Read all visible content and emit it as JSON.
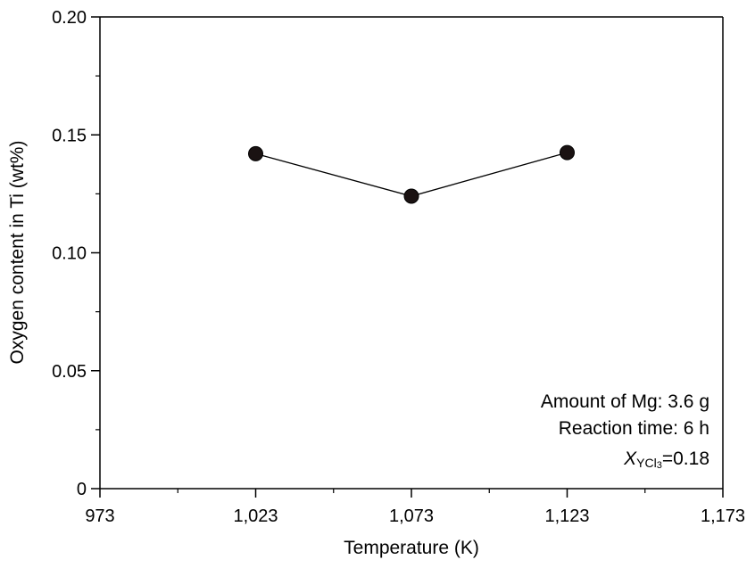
{
  "chart_data": {
    "type": "line",
    "xlabel": "Temperature (K)",
    "ylabel": "Oxygen content in Ti (wt%)",
    "xlim": [
      973,
      1173
    ],
    "ylim": [
      0,
      0.2
    ],
    "x_ticks": [
      973,
      1023,
      1073,
      1123,
      1173
    ],
    "x_tick_labels": [
      "973",
      "1,023",
      "1,073",
      "1,123",
      "1,173"
    ],
    "y_ticks": [
      0,
      0.05,
      0.1,
      0.15,
      0.2
    ],
    "y_tick_labels": [
      "0",
      "0.05",
      "0.10",
      "0.15",
      "0.20"
    ],
    "grid": false,
    "series": [
      {
        "name": "Oxygen content",
        "x": [
          1023,
          1073,
          1123
        ],
        "values": [
          0.142,
          0.124,
          0.1425
        ]
      }
    ],
    "annotations": {
      "line1": "Amount of Mg: 3.6 g",
      "line2": "Reaction time: 6 h",
      "line3_symbol": "X",
      "line3_sub_main": "YCl",
      "line3_sub_small": "3",
      "line3_value": "=0.18"
    }
  }
}
